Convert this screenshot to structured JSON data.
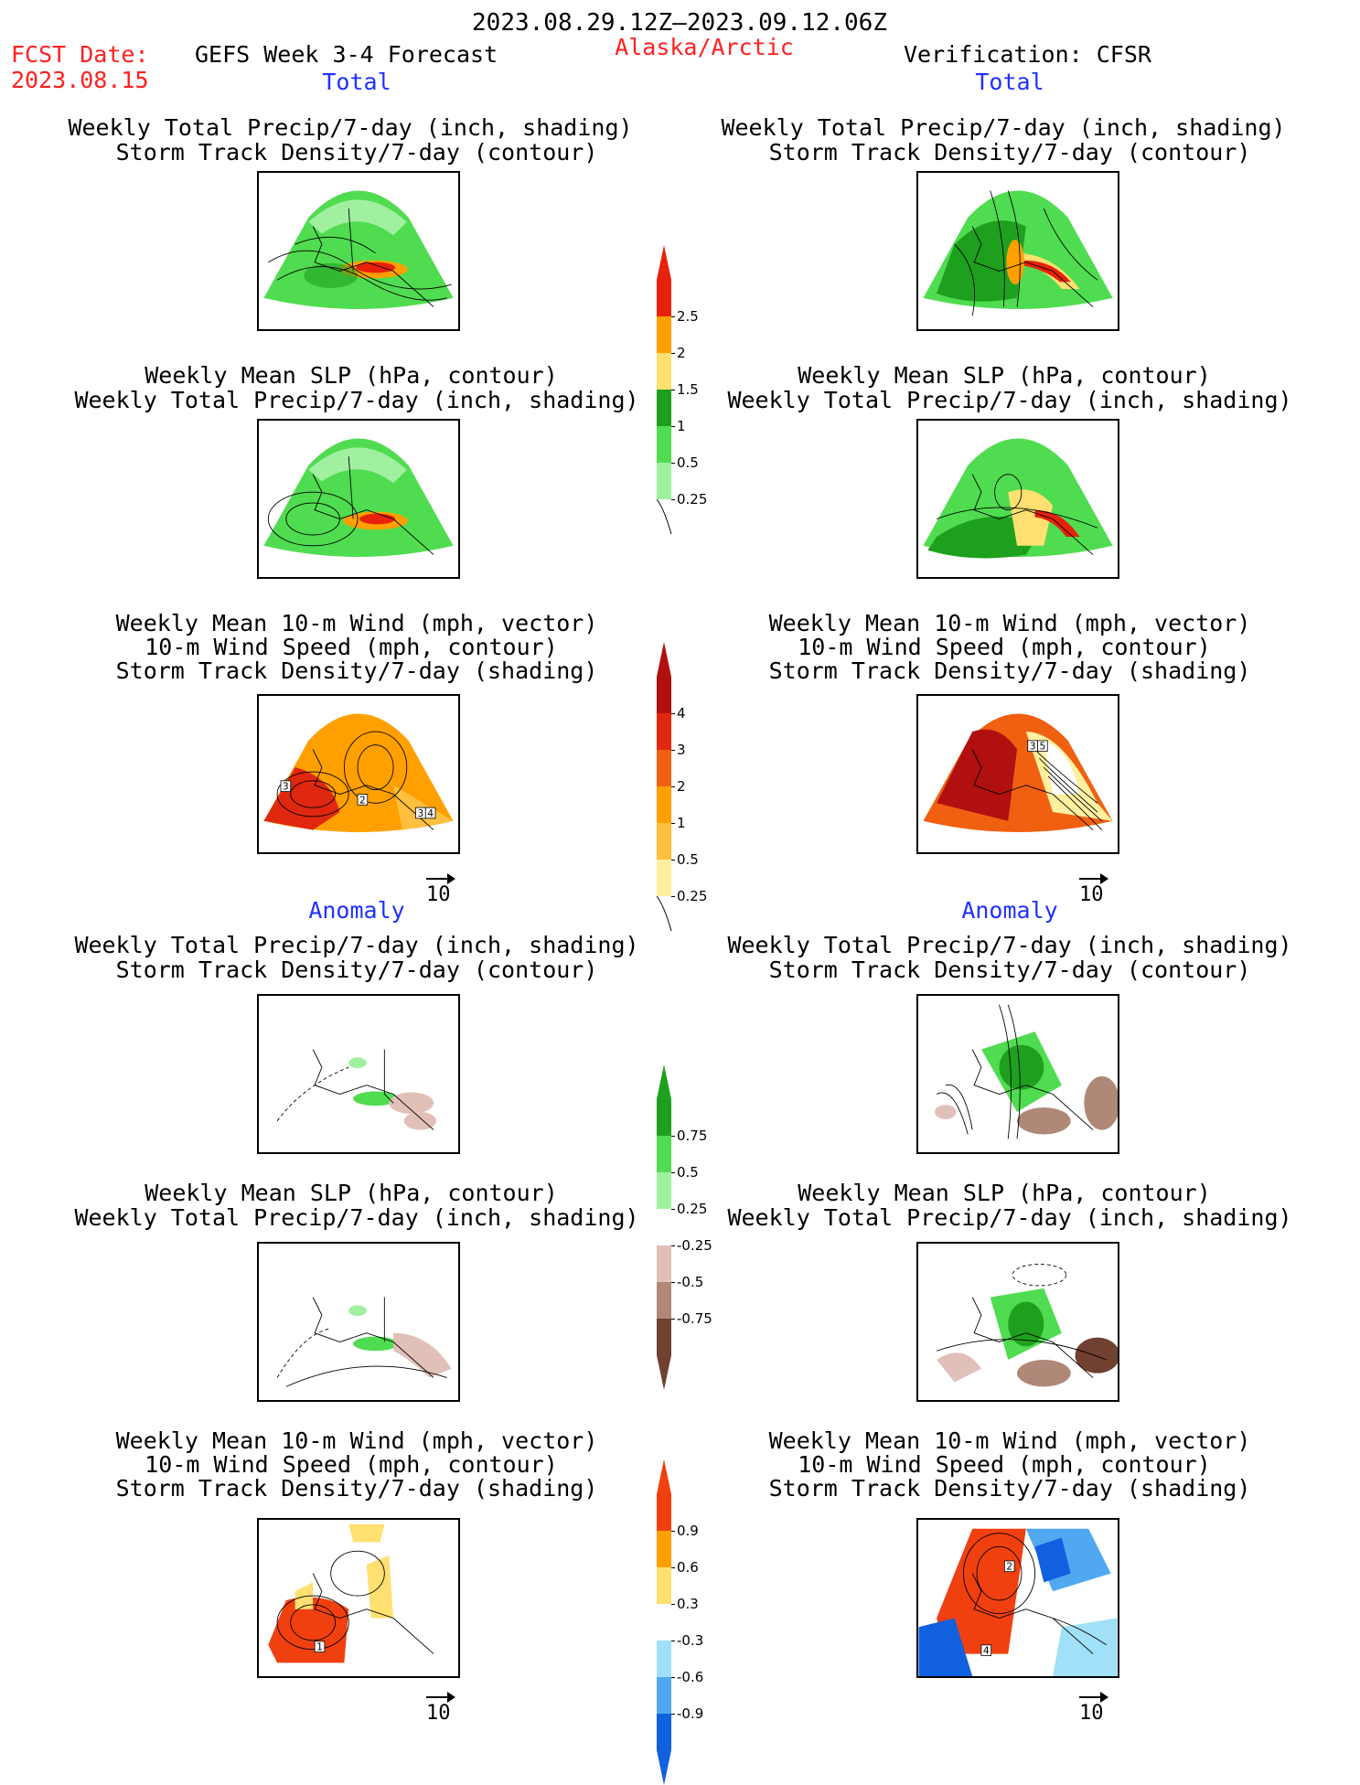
{
  "header": {
    "date_range": "2023.08.29.12Z–2023.09.12.06Z",
    "fcst_date_label": "FCST Date:",
    "fcst_date_value": "2023.08.15",
    "forecast_title": "GEFS Week 3-4 Forecast",
    "region": "Alaska/Arctic",
    "verification": "Verification: CFSR"
  },
  "sections": {
    "total_left": "Total",
    "total_right": "Total",
    "anomaly_left": "Anomaly",
    "anomaly_right": "Anomaly"
  },
  "titles": {
    "precip_storm": [
      "Weekly Total Precip/7-day (inch, shading)",
      "Storm Track Density/7-day (contour)"
    ],
    "slp_precip": [
      "Weekly Mean SLP (hPa, contour)",
      "Weekly Total Precip/7-day (inch, shading)"
    ],
    "wind": [
      "Weekly Mean 10-m Wind (mph, vector)",
      "10-m Wind Speed (mph, contour)",
      "Storm Track Density/7-day (shading)"
    ]
  },
  "vector_ref": "10",
  "colorbars": {
    "precip_total": {
      "labels": [
        "2.5",
        "2",
        "1.5",
        "1",
        "0.5",
        "0.25"
      ],
      "colors": [
        "#e8220a",
        "#ffa000",
        "#ffe070",
        "#1ea01e",
        "#50dc50",
        "#a0f0a0"
      ]
    },
    "storm_total": {
      "labels": [
        "4",
        "3",
        "2",
        "1",
        "0.5",
        "0.25"
      ],
      "colors": [
        "#b01010",
        "#e02810",
        "#f06010",
        "#ffa000",
        "#ffc040",
        "#fff0a0"
      ]
    },
    "precip_anom": {
      "labels": [
        "0.75",
        "0.5",
        "0.25",
        "-0.25",
        "-0.5",
        "-0.75"
      ],
      "colors": [
        "#1ea01e",
        "#50dc50",
        "#a0f0a0",
        "#ffffff",
        "#e0c0b8",
        "#b08878",
        "#704030"
      ]
    },
    "storm_anom": {
      "labels": [
        "0.9",
        "0.6",
        "0.3",
        "-0.3",
        "-0.6",
        "-0.9"
      ],
      "colors": [
        "#f04010",
        "#ffa000",
        "#ffe070",
        "#ffffff",
        "#a0e0f8",
        "#50a8f0",
        "#1060e0"
      ]
    }
  },
  "panel_labels": {
    "wind_total_left": [
      "3",
      "2",
      "3",
      "4"
    ],
    "wind_total_right": [
      "3",
      "5"
    ],
    "wind_anom_left": [
      "1"
    ],
    "wind_anom_right": [
      "2",
      "4"
    ]
  }
}
